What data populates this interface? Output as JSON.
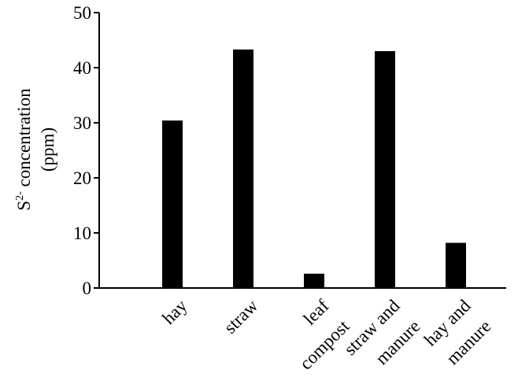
{
  "chart_data": {
    "type": "bar",
    "y_label": {
      "base": "S",
      "superscript": "2-",
      "rest": " concentration",
      "line2": "(ppm)"
    },
    "categories": [
      [
        "hay"
      ],
      [
        "straw"
      ],
      [
        "leaf",
        "compost"
      ],
      [
        "straw and",
        "manure"
      ],
      [
        "hay and",
        "manure"
      ]
    ],
    "values": [
      30.4,
      43.3,
      2.6,
      43.0,
      8.2
    ],
    "color": "#000000",
    "ylim": [
      0,
      50
    ],
    "yticks": [
      0,
      10,
      20,
      30,
      40,
      50
    ]
  }
}
